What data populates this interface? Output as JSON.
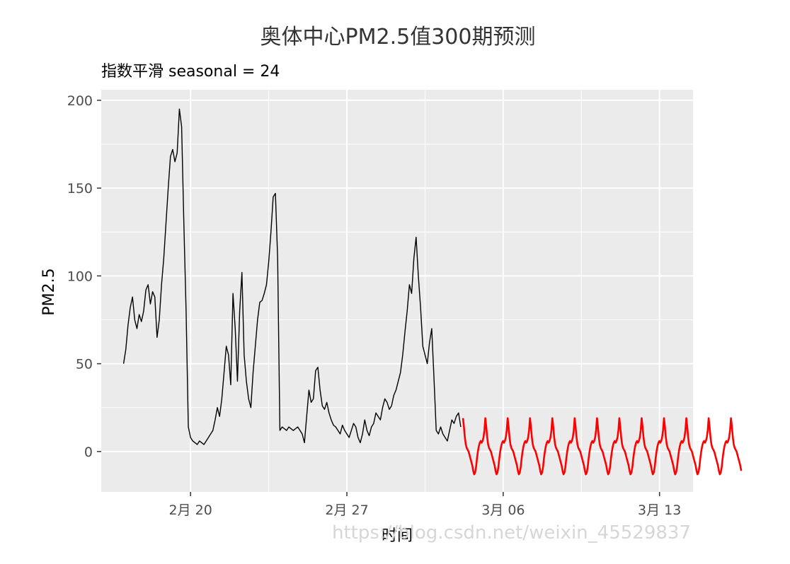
{
  "chart_data": {
    "type": "line",
    "title": "奥体中心PM2.5值300期预测",
    "subtitle": "指数平滑 seasonal = 24",
    "xlabel": "时间",
    "ylabel": "PM2.5",
    "y_ticks": [
      0,
      50,
      100,
      150,
      200
    ],
    "y_tick_labels": [
      "0",
      "50",
      "100",
      "150",
      "200"
    ],
    "x_ticks": [
      "2月 20",
      "2月 27",
      "3月 06",
      "3月 13"
    ],
    "x_tick_values": [
      20,
      27,
      34,
      41
    ],
    "xlim": [
      16.0,
      42.5
    ],
    "ylim": [
      -23,
      206
    ],
    "grid": true,
    "panel_background": "#ebebeb",
    "series": [
      {
        "color": "#000000",
        "x_start": 17.0,
        "x_step": 0.1,
        "values": [
          50,
          58,
          72,
          82,
          88,
          75,
          70,
          78,
          74,
          80,
          92,
          95,
          84,
          91,
          88,
          65,
          75,
          95,
          110,
          130,
          150,
          168,
          172,
          165,
          170,
          195,
          185,
          130,
          80,
          14,
          8,
          6,
          5,
          4,
          6,
          5,
          4,
          6,
          8,
          10,
          12,
          18,
          25,
          20,
          30,
          45,
          60,
          55,
          38,
          90,
          70,
          40,
          80,
          102,
          55,
          40,
          30,
          25,
          45,
          60,
          75,
          85,
          86,
          90,
          95,
          108,
          125,
          145,
          147,
          110,
          12,
          14,
          13,
          12,
          14,
          13,
          12,
          13,
          14,
          12,
          10,
          5,
          20,
          35,
          28,
          30,
          46,
          48,
          35,
          26,
          24,
          28,
          22,
          18,
          15,
          14,
          12,
          10,
          15,
          12,
          10,
          8,
          12,
          16,
          14,
          8,
          5,
          10,
          18,
          12,
          9,
          14,
          16,
          22,
          20,
          18,
          25,
          30,
          28,
          24,
          26,
          32,
          35,
          40,
          45,
          55,
          68,
          80,
          95,
          90,
          110,
          122,
          100,
          82,
          60,
          55,
          50,
          62,
          70,
          42,
          12,
          10,
          14,
          10,
          8,
          6,
          12,
          18,
          16,
          20,
          22,
          14
        ]
      },
      {
        "color": "#ff0000",
        "x_start": 32.2,
        "x_step": 0.041667,
        "season": [
          19,
          14,
          8,
          4,
          2,
          1,
          0,
          -2,
          -4,
          -6,
          -8,
          -11,
          -13,
          -12,
          -9,
          -4,
          0,
          3,
          5,
          6,
          5,
          6,
          8,
          12
        ],
        "periods": 12.5
      }
    ]
  },
  "watermark": "https://blog.csdn.net/weixin_45529837"
}
